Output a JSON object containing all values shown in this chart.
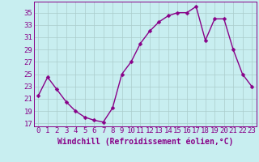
{
  "x": [
    0,
    1,
    2,
    3,
    4,
    5,
    6,
    7,
    8,
    9,
    10,
    11,
    12,
    13,
    14,
    15,
    16,
    17,
    18,
    19,
    20,
    21,
    22,
    23
  ],
  "y": [
    21.5,
    24.5,
    22.5,
    20.5,
    19.0,
    18.0,
    17.5,
    17.2,
    19.5,
    25.0,
    27.0,
    30.0,
    32.0,
    33.5,
    34.5,
    35.0,
    35.0,
    36.0,
    30.5,
    34.0,
    34.0,
    29.0,
    25.0,
    23.0
  ],
  "line_color": "#880088",
  "marker_color": "#880088",
  "bg_color": "#c8eef0",
  "grid_color": "#aacccc",
  "xlabel": "Windchill (Refroidissement éolien,°C)",
  "xlim": [
    -0.5,
    23.5
  ],
  "ylim": [
    16.5,
    36.8
  ],
  "yticks": [
    17,
    19,
    21,
    23,
    25,
    27,
    29,
    31,
    33,
    35
  ],
  "xticks": [
    0,
    1,
    2,
    3,
    4,
    5,
    6,
    7,
    8,
    9,
    10,
    11,
    12,
    13,
    14,
    15,
    16,
    17,
    18,
    19,
    20,
    21,
    22,
    23
  ],
  "xlabel_fontsize": 7.0,
  "tick_fontsize": 6.5,
  "line_width": 1.0,
  "marker_size": 2.5
}
